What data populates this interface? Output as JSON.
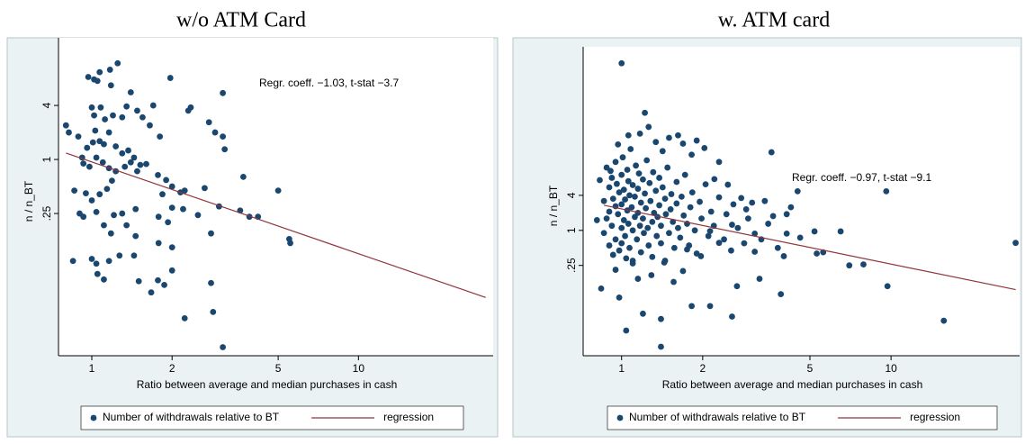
{
  "chart_data": [
    {
      "type": "scatter",
      "title": "w/o ATM Card",
      "xlabel": "Ratio between average and median purchases in cash",
      "ylabel": "n / n_BT",
      "annotation": "Regr. coeff. −1.03, t-stat −3.7",
      "xscale": "log",
      "yscale": "log",
      "xlim": [
        0.75,
        32
      ],
      "ylim": [
        0.0065,
        18
      ],
      "xticks": [
        1,
        2,
        5,
        10
      ],
      "yticks": [
        4,
        1,
        {
          "value": 0.25,
          "label": ".25"
        }
      ],
      "legend": "bottom",
      "series": [
        {
          "name": "Number of withdrawals relative to BT",
          "type": "scatter",
          "color": "#1a476f",
          "x": [
            0.97,
            1.02,
            1.05,
            1.25,
            1.18,
            1.4,
            1.17,
            1.07,
            1.97,
            3.1,
            0.8,
            0.82,
            0.89,
            1.0,
            1.02,
            1.08,
            1.12,
            1.2,
            1.3,
            1.35,
            1.48,
            1.55,
            1.7,
            1.65,
            1.8,
            2.3,
            2.35,
            2.75,
            2.9,
            3.1,
            3.15,
            0.96,
            1.01,
            1.03,
            1.07,
            1.11,
            1.16,
            1.23,
            1.3,
            1.37,
            1.44,
            1.52,
            1.6,
            0.92,
            0.93,
            0.98,
            1.04,
            1.1,
            1.16,
            1.23,
            1.33,
            1.4,
            1.48,
            1.77,
            1.9,
            2.0,
            2.15,
            2.23,
            2.65,
            3.0,
            0.86,
            0.95,
            1.0,
            1.07,
            1.14,
            1.19,
            1.84,
            2.0,
            2.2,
            2.5,
            0.9,
            0.93,
            1.04,
            1.11,
            1.21,
            1.3,
            1.35,
            1.46,
            1.78,
            1.93,
            3.6,
            3.9,
            4.2,
            5.5,
            5.55,
            5.0,
            3.7,
            2.8,
            1.18,
            1.46,
            1.78,
            2.0,
            1.0,
            0.85,
            1.04,
            1.16,
            1.27,
            1.44,
            2.0,
            1.05,
            1.11,
            1.5,
            1.77,
            1.87,
            1.67,
            2.8,
            2.23,
            2.85,
            3.1
          ],
          "values": [
            8.3,
            7.8,
            7.5,
            11.8,
            6.7,
            5.6,
            10,
            9.4,
            8.1,
            5.5,
            2.4,
            2.0,
            1.8,
            3.8,
            3.1,
            3.8,
            2.8,
            3.1,
            2.95,
            3.9,
            3.5,
            2.95,
            4,
            2.4,
            1.8,
            3.5,
            3.8,
            2.6,
            2.0,
            1.8,
            1.3,
            1.35,
            1.55,
            2.1,
            1.6,
            1.48,
            2.0,
            1.4,
            1.17,
            1.26,
            1.05,
            0.87,
            0.89,
            1.05,
            0.9,
            0.83,
            1.05,
            0.93,
            0.8,
            0.74,
            0.83,
            0.93,
            0.74,
            0.67,
            0.59,
            0.5,
            0.43,
            0.45,
            0.48,
            0.3,
            0.45,
            0.42,
            0.35,
            0.41,
            0.47,
            0.58,
            0.41,
            0.29,
            0.28,
            0.24,
            0.25,
            0.23,
            0.26,
            0.185,
            0.24,
            0.25,
            0.185,
            0.28,
            0.23,
            0.2,
            0.27,
            0.23,
            0.23,
            0.13,
            0.117,
            0.45,
            0.64,
            0.15,
            0.15,
            0.14,
            0.117,
            0.105,
            0.078,
            0.074,
            0.069,
            0.074,
            0.085,
            0.085,
            0.058,
            0.053,
            0.046,
            0.044,
            0.045,
            0.04,
            0.033,
            0.042,
            0.017,
            0.02,
            0.0081
          ]
        },
        {
          "name": "regression",
          "type": "line",
          "color": "#90353b",
          "x": [
            0.8,
            30
          ],
          "values": [
            1.18,
            0.029
          ]
        }
      ]
    },
    {
      "type": "scatter",
      "title": "w. ATM card",
      "xlabel": "Ratio between average and median purchases in cash",
      "ylabel": "n / n_BT",
      "annotation": "Regr. coeff. −0.97, t-stat −9.1",
      "xscale": "log",
      "yscale": "log",
      "xlim": [
        0.72,
        30
      ],
      "ylim": [
        0.007,
        1000
      ],
      "xticks": [
        1,
        2,
        5,
        10
      ],
      "yticks": [
        4,
        1,
        {
          "value": 0.25,
          "label": ".25"
        }
      ],
      "legend": "bottom",
      "series": [
        {
          "name": "Number of withdrawals relative to BT",
          "type": "scatter",
          "color": "#1a476f",
          "x": [
            1.0,
            1.22,
            1.5,
            1.9,
            2.3,
            3.6,
            4.5,
            9.6,
            29,
            15.7,
            9.7,
            7.0,
            7.9,
            6.5,
            5.3,
            5.2,
            4.25,
            4.1,
            4.0,
            3.9,
            3.25,
            3.12,
            2.68,
            2.57,
            2.13,
            1.82,
            1.4,
            1.4,
            1.2,
            1.04,
            0.98,
            0.84,
            0.81,
            0.83,
            0.91,
            0.97,
            1.06,
            1.17,
            1.26,
            1.34,
            1.42,
            1.62,
            1.69,
            1.82,
            2.03,
            2.21,
            2.48,
            2.78,
            2.9,
            3.4,
            3.65,
            2.57,
            3.12,
            2.3,
            1.97,
            1.69,
            1.56,
            1.29,
            1.1,
            0.95,
            1.15,
            1.45,
            1.75,
            2.13,
            0.86,
            0.86,
            0.88,
            0.88,
            0.9,
            0.9,
            0.9,
            0.92,
            0.92,
            0.93,
            0.93,
            0.95,
            0.95,
            0.95,
            0.96,
            0.97,
            0.98,
            0.98,
            1.0,
            1.0,
            1.0,
            1.0,
            1.01,
            1.02,
            1.02,
            1.03,
            1.03,
            1.04,
            1.05,
            1.05,
            1.06,
            1.06,
            1.07,
            1.07,
            1.08,
            1.09,
            1.1,
            1.1,
            1.1,
            1.12,
            1.12,
            1.13,
            1.14,
            1.15,
            1.15,
            1.16,
            1.17,
            1.18,
            1.18,
            1.2,
            1.2,
            1.21,
            1.22,
            1.23,
            1.24,
            1.25,
            1.26,
            1.27,
            1.28,
            1.3,
            1.3,
            1.31,
            1.32,
            1.34,
            1.35,
            1.36,
            1.38,
            1.38,
            1.4,
            1.4,
            1.42,
            1.44,
            1.45,
            1.46,
            1.48,
            1.5,
            1.52,
            1.53,
            1.55,
            1.57,
            1.6,
            1.6,
            1.62,
            1.65,
            1.67,
            1.7,
            1.72,
            1.75,
            1.78,
            1.8,
            1.83,
            1.87,
            1.9,
            1.95,
            1.98,
            2.05,
            2.1,
            2.15,
            2.2,
            2.3,
            2.4,
            2.45,
            2.55,
            2.6,
            2.7,
            2.85,
            2.95,
            3.05,
            3.3,
            3.5,
            3.8,
            4.1,
            4.6,
            5.6
          ],
          "values": [
            745,
            105,
            39,
            35,
            15,
            22,
            4.7,
            4.7,
            0.61,
            0.028,
            0.11,
            0.25,
            0.26,
            0.96,
            0.4,
            0.96,
            2.5,
            0.88,
            0.36,
            0.08,
            0.147,
            0.43,
            0.11,
            0.033,
            0.05,
            0.05,
            0.03,
            0.01,
            0.037,
            0.019,
            0.07,
            0.1,
            1.5,
            7.3,
            10.5,
            30,
            43,
            46,
            60,
            33,
            23,
            43,
            31,
            20,
            26,
            7.6,
            6.1,
            3.6,
            2.3,
            3.2,
            1.76,
            1.25,
            0.88,
            0.61,
            0.36,
            0.2,
            0.13,
            0.17,
            0.3,
            0.21,
            0.147,
            0.3,
            0.47,
            0.97,
            3.2,
            0.9,
            12,
            1.6,
            5.5,
            0.55,
            2.1,
            8,
            1.2,
            3.5,
            0.38,
            15,
            2.6,
            0.7,
            6.3,
            1.9,
            4.5,
            0.45,
            9,
            2.8,
            1.1,
            0.6,
            18,
            5,
            1.5,
            3.4,
            0.8,
            0.33,
            11,
            2.2,
            7,
            1.3,
            4,
            0.5,
            25,
            2.5,
            6,
            1.0,
            0.27,
            3.8,
            1.7,
            13,
            0.7,
            5.2,
            2.0,
            9.5,
            1.2,
            3.0,
            0.42,
            7.5,
            1.6,
            0.9,
            4.3,
            2.4,
            16,
            1.1,
            0.55,
            6.5,
            3.2,
            1.4,
            0.35,
            10,
            2.0,
            4.8,
            0.8,
            1.7,
            8,
            2.7,
            0.6,
            1.2,
            5.5,
            0.28,
            3.5,
            1.9,
            12,
            0.9,
            2.3,
            4.2,
            1.4,
            0.5,
            6.8,
            2.9,
            1.1,
            0.75,
            3.8,
            1.8,
            9,
            1.3,
            0.55,
            2.5,
            4.5,
            1.0,
            0.4,
            3.1,
            1.6,
            6.2,
            0.8,
            2.1,
            1.2,
            3.7,
            0.7,
            1.9,
            0.45,
            2.8,
            1.1,
            0.6,
            1.6,
            3.0,
            0.7,
            1.3,
            0.5,
            1.9,
            0.75,
            0.42
          ]
        },
        {
          "name": "regression",
          "type": "line",
          "color": "#90353b",
          "x": [
            0.86,
            29
          ],
          "values": [
            2.7,
            0.096
          ]
        }
      ]
    }
  ]
}
